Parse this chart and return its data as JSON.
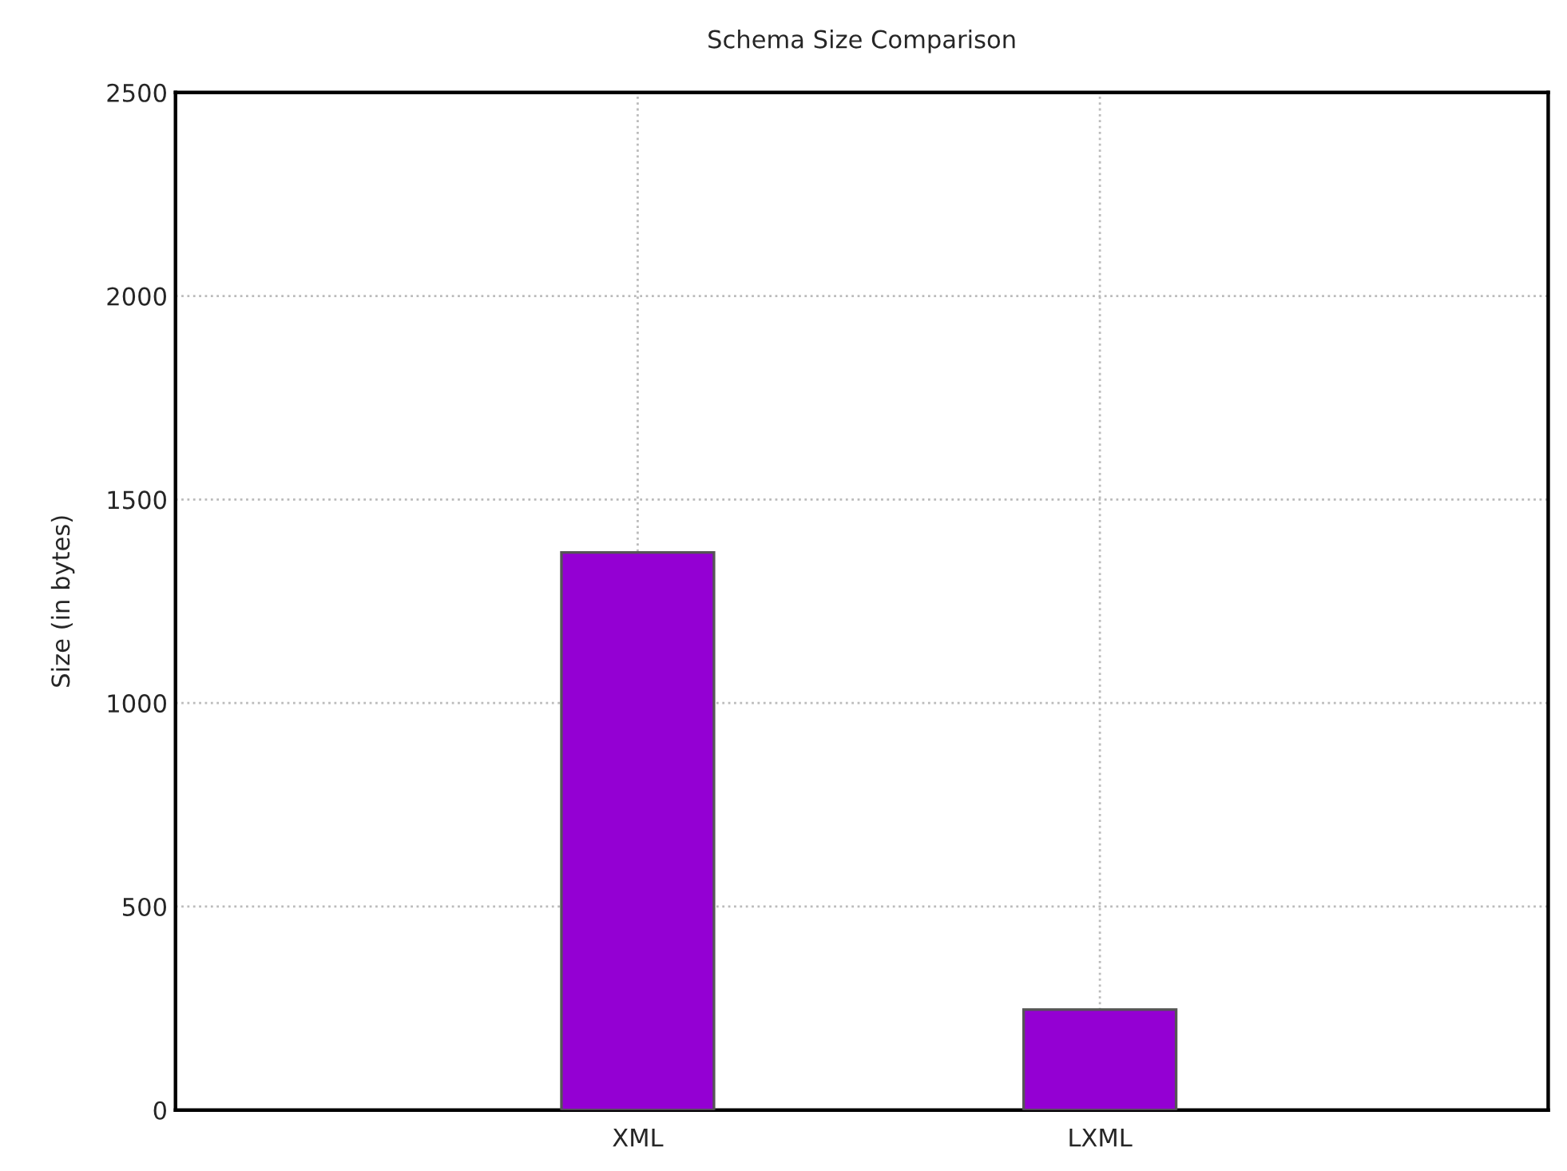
{
  "chart_data": {
    "type": "bar",
    "title": "Schema Size Comparison",
    "ylabel": "Size (in bytes)",
    "categories": [
      "XML",
      "LXML"
    ],
    "series": [
      {
        "color": "#9400d3",
        "values": [
          1370,
          247
        ]
      }
    ],
    "ylim": [
      0,
      2500
    ],
    "yticks": [
      0,
      500,
      1000,
      1500,
      2000,
      2500
    ],
    "grid": true,
    "legend": false
  }
}
